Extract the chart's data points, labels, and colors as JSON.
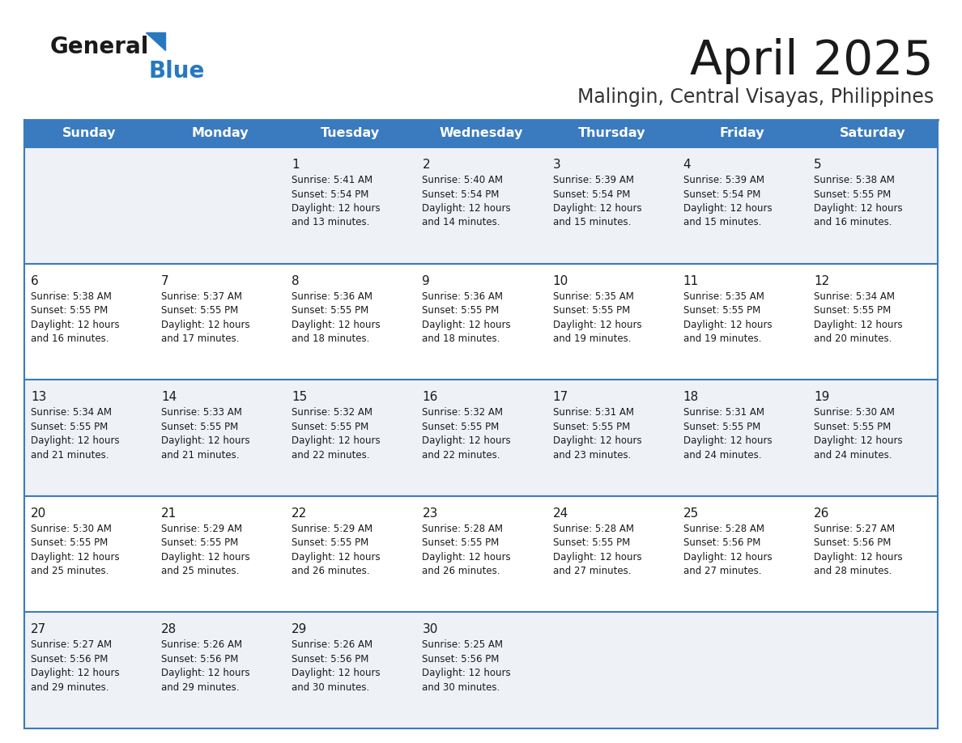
{
  "title": "April 2025",
  "subtitle": "Malingin, Central Visayas, Philippines",
  "days_of_week": [
    "Sunday",
    "Monday",
    "Tuesday",
    "Wednesday",
    "Thursday",
    "Friday",
    "Saturday"
  ],
  "header_bg": "#3a7bbf",
  "header_text_color": "#ffffff",
  "row_bg_odd": "#eef2f7",
  "row_bg_even": "#ffffff",
  "separator_color": "#3a7bbf",
  "text_color": "#1a1a1a",
  "title_color": "#1a1a1a",
  "subtitle_color": "#333333",
  "logo_general_color": "#1a1a1a",
  "logo_blue_color": "#2878c0",
  "calendar": [
    [
      {
        "day": "",
        "sunrise": "",
        "sunset": "",
        "daylight": ""
      },
      {
        "day": "",
        "sunrise": "",
        "sunset": "",
        "daylight": ""
      },
      {
        "day": "1",
        "sunrise": "Sunrise: 5:41 AM",
        "sunset": "Sunset: 5:54 PM",
        "daylight": "Daylight: 12 hours\nand 13 minutes."
      },
      {
        "day": "2",
        "sunrise": "Sunrise: 5:40 AM",
        "sunset": "Sunset: 5:54 PM",
        "daylight": "Daylight: 12 hours\nand 14 minutes."
      },
      {
        "day": "3",
        "sunrise": "Sunrise: 5:39 AM",
        "sunset": "Sunset: 5:54 PM",
        "daylight": "Daylight: 12 hours\nand 15 minutes."
      },
      {
        "day": "4",
        "sunrise": "Sunrise: 5:39 AM",
        "sunset": "Sunset: 5:54 PM",
        "daylight": "Daylight: 12 hours\nand 15 minutes."
      },
      {
        "day": "5",
        "sunrise": "Sunrise: 5:38 AM",
        "sunset": "Sunset: 5:55 PM",
        "daylight": "Daylight: 12 hours\nand 16 minutes."
      }
    ],
    [
      {
        "day": "6",
        "sunrise": "Sunrise: 5:38 AM",
        "sunset": "Sunset: 5:55 PM",
        "daylight": "Daylight: 12 hours\nand 16 minutes."
      },
      {
        "day": "7",
        "sunrise": "Sunrise: 5:37 AM",
        "sunset": "Sunset: 5:55 PM",
        "daylight": "Daylight: 12 hours\nand 17 minutes."
      },
      {
        "day": "8",
        "sunrise": "Sunrise: 5:36 AM",
        "sunset": "Sunset: 5:55 PM",
        "daylight": "Daylight: 12 hours\nand 18 minutes."
      },
      {
        "day": "9",
        "sunrise": "Sunrise: 5:36 AM",
        "sunset": "Sunset: 5:55 PM",
        "daylight": "Daylight: 12 hours\nand 18 minutes."
      },
      {
        "day": "10",
        "sunrise": "Sunrise: 5:35 AM",
        "sunset": "Sunset: 5:55 PM",
        "daylight": "Daylight: 12 hours\nand 19 minutes."
      },
      {
        "day": "11",
        "sunrise": "Sunrise: 5:35 AM",
        "sunset": "Sunset: 5:55 PM",
        "daylight": "Daylight: 12 hours\nand 19 minutes."
      },
      {
        "day": "12",
        "sunrise": "Sunrise: 5:34 AM",
        "sunset": "Sunset: 5:55 PM",
        "daylight": "Daylight: 12 hours\nand 20 minutes."
      }
    ],
    [
      {
        "day": "13",
        "sunrise": "Sunrise: 5:34 AM",
        "sunset": "Sunset: 5:55 PM",
        "daylight": "Daylight: 12 hours\nand 21 minutes."
      },
      {
        "day": "14",
        "sunrise": "Sunrise: 5:33 AM",
        "sunset": "Sunset: 5:55 PM",
        "daylight": "Daylight: 12 hours\nand 21 minutes."
      },
      {
        "day": "15",
        "sunrise": "Sunrise: 5:32 AM",
        "sunset": "Sunset: 5:55 PM",
        "daylight": "Daylight: 12 hours\nand 22 minutes."
      },
      {
        "day": "16",
        "sunrise": "Sunrise: 5:32 AM",
        "sunset": "Sunset: 5:55 PM",
        "daylight": "Daylight: 12 hours\nand 22 minutes."
      },
      {
        "day": "17",
        "sunrise": "Sunrise: 5:31 AM",
        "sunset": "Sunset: 5:55 PM",
        "daylight": "Daylight: 12 hours\nand 23 minutes."
      },
      {
        "day": "18",
        "sunrise": "Sunrise: 5:31 AM",
        "sunset": "Sunset: 5:55 PM",
        "daylight": "Daylight: 12 hours\nand 24 minutes."
      },
      {
        "day": "19",
        "sunrise": "Sunrise: 5:30 AM",
        "sunset": "Sunset: 5:55 PM",
        "daylight": "Daylight: 12 hours\nand 24 minutes."
      }
    ],
    [
      {
        "day": "20",
        "sunrise": "Sunrise: 5:30 AM",
        "sunset": "Sunset: 5:55 PM",
        "daylight": "Daylight: 12 hours\nand 25 minutes."
      },
      {
        "day": "21",
        "sunrise": "Sunrise: 5:29 AM",
        "sunset": "Sunset: 5:55 PM",
        "daylight": "Daylight: 12 hours\nand 25 minutes."
      },
      {
        "day": "22",
        "sunrise": "Sunrise: 5:29 AM",
        "sunset": "Sunset: 5:55 PM",
        "daylight": "Daylight: 12 hours\nand 26 minutes."
      },
      {
        "day": "23",
        "sunrise": "Sunrise: 5:28 AM",
        "sunset": "Sunset: 5:55 PM",
        "daylight": "Daylight: 12 hours\nand 26 minutes."
      },
      {
        "day": "24",
        "sunrise": "Sunrise: 5:28 AM",
        "sunset": "Sunset: 5:55 PM",
        "daylight": "Daylight: 12 hours\nand 27 minutes."
      },
      {
        "day": "25",
        "sunrise": "Sunrise: 5:28 AM",
        "sunset": "Sunset: 5:56 PM",
        "daylight": "Daylight: 12 hours\nand 27 minutes."
      },
      {
        "day": "26",
        "sunrise": "Sunrise: 5:27 AM",
        "sunset": "Sunset: 5:56 PM",
        "daylight": "Daylight: 12 hours\nand 28 minutes."
      }
    ],
    [
      {
        "day": "27",
        "sunrise": "Sunrise: 5:27 AM",
        "sunset": "Sunset: 5:56 PM",
        "daylight": "Daylight: 12 hours\nand 29 minutes."
      },
      {
        "day": "28",
        "sunrise": "Sunrise: 5:26 AM",
        "sunset": "Sunset: 5:56 PM",
        "daylight": "Daylight: 12 hours\nand 29 minutes."
      },
      {
        "day": "29",
        "sunrise": "Sunrise: 5:26 AM",
        "sunset": "Sunset: 5:56 PM",
        "daylight": "Daylight: 12 hours\nand 30 minutes."
      },
      {
        "day": "30",
        "sunrise": "Sunrise: 5:25 AM",
        "sunset": "Sunset: 5:56 PM",
        "daylight": "Daylight: 12 hours\nand 30 minutes."
      },
      {
        "day": "",
        "sunrise": "",
        "sunset": "",
        "daylight": ""
      },
      {
        "day": "",
        "sunrise": "",
        "sunset": "",
        "daylight": ""
      },
      {
        "day": "",
        "sunrise": "",
        "sunset": "",
        "daylight": ""
      }
    ]
  ]
}
